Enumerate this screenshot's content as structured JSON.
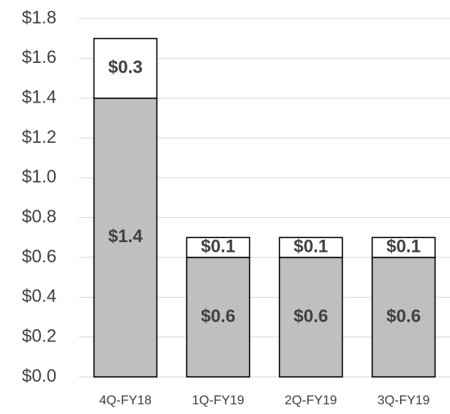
{
  "chart_data": {
    "type": "stacked-bar",
    "categories": [
      "4Q-FY18",
      "1Q-FY19",
      "2Q-FY19",
      "3Q-FY19"
    ],
    "series": [
      {
        "color": "#bfbfbf",
        "values": [
          1.4,
          0.6,
          0.6,
          0.6
        ],
        "value_labels": [
          "$1.4",
          "$0.6",
          "$0.6",
          "$0.6"
        ]
      },
      {
        "color": "#ffffff",
        "values": [
          0.3,
          0.1,
          0.1,
          0.1
        ],
        "value_labels": [
          "$0.3",
          "$0.1",
          "$0.1",
          "$0.1"
        ]
      }
    ],
    "ylim": [
      0,
      1.8
    ],
    "yticks": [
      {
        "value": 0,
        "label": "$0.0"
      },
      {
        "value": 0.2,
        "label": "$0.2"
      },
      {
        "value": 0.4,
        "label": "$0.4"
      },
      {
        "value": 0.6,
        "label": "$0.6"
      },
      {
        "value": 0.8,
        "label": "$0.8"
      },
      {
        "value": 1.0,
        "label": "$1.0"
      },
      {
        "value": 1.2,
        "label": "$1.2"
      },
      {
        "value": 1.4,
        "label": "$1.4"
      },
      {
        "value": 1.6,
        "label": "$1.6"
      },
      {
        "value": 1.8,
        "label": "$1.8"
      }
    ],
    "grid": true
  }
}
